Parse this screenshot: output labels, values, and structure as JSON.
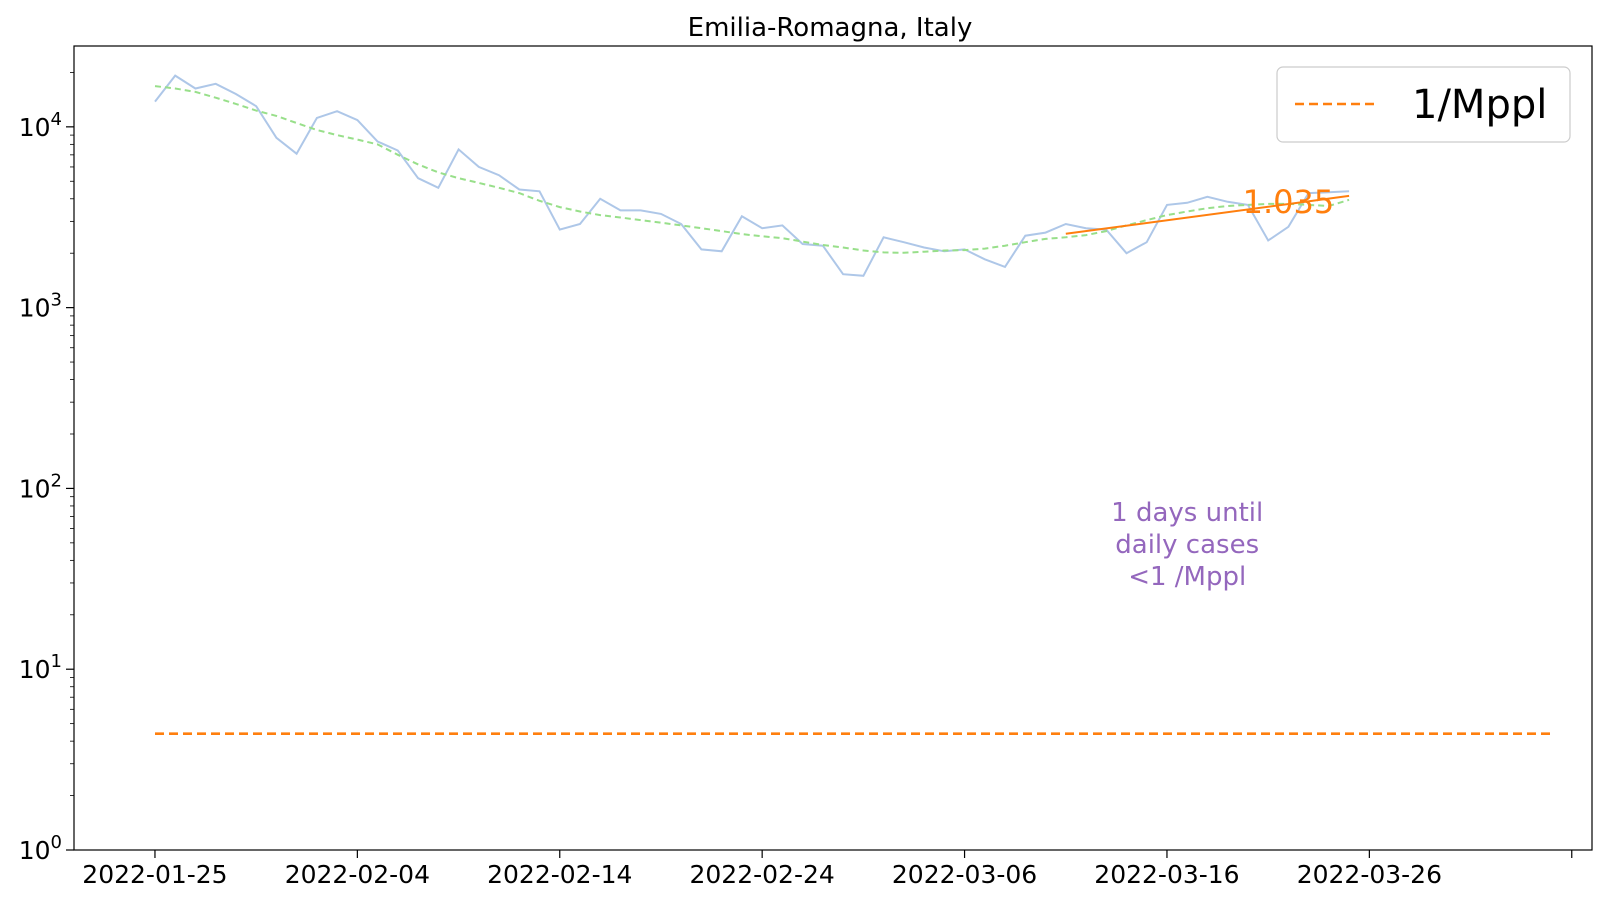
{
  "chart_data": {
    "type": "line",
    "title": "Emilia-Romagna, Italy",
    "xlabel": "",
    "ylabel": "",
    "y_scale": "log",
    "ylim": [
      1,
      28000
    ],
    "xlim": [
      "2022-01-21",
      "2022-04-06"
    ],
    "x_ticks": [
      "2022-01-25",
      "2022-02-04",
      "2022-02-14",
      "2022-02-24",
      "2022-03-06",
      "2022-03-16",
      "2022-03-26",
      "2022-04-05"
    ],
    "x_tick_labels": [
      "2022-01-25",
      "2022-02-04",
      "2022-02-14",
      "2022-02-24",
      "2022-03-06",
      "2022-03-16",
      "2022-03-26",
      ""
    ],
    "y_ticks": [
      1,
      10,
      100,
      1000,
      10000
    ],
    "y_tick_labels": [
      {
        "base": "10",
        "exp": "0"
      },
      {
        "base": "10",
        "exp": "1"
      },
      {
        "base": "10",
        "exp": "2"
      },
      {
        "base": "10",
        "exp": "3"
      },
      {
        "base": "10",
        "exp": "4"
      }
    ],
    "grid": false,
    "legend": {
      "placement": "top-right",
      "entries": [
        {
          "label": "1/Mppl",
          "color": "#ff7f0e",
          "style": "dashed"
        }
      ]
    },
    "series": [
      {
        "color": "#aec7e8",
        "style": "solid",
        "x_start": "2022-01-25",
        "values": [
          13800,
          19200,
          16300,
          17300,
          15200,
          13000,
          8700,
          7100,
          11200,
          12200,
          10900,
          8300,
          7400,
          5200,
          4600,
          7500,
          6000,
          5400,
          4500,
          4400,
          2700,
          2900,
          4000,
          3450,
          3450,
          3300,
          2900,
          2100,
          2050,
          3200,
          2750,
          2850,
          2250,
          2200,
          1530,
          1500,
          2450,
          2300,
          2150,
          2050,
          2100,
          1850,
          1680,
          2500,
          2600,
          2900,
          2750,
          2700,
          2000,
          2300,
          3700,
          3800,
          4100,
          3850,
          3700,
          2350,
          2800,
          4300,
          4350,
          4400
        ]
      },
      {
        "color": "#98df8a",
        "style": "dashed",
        "x_start": "2022-01-25",
        "values": [
          16800,
          16300,
          15600,
          14500,
          13400,
          12300,
          11500,
          10500,
          9600,
          9000,
          8500,
          8000,
          7000,
          6200,
          5600,
          5200,
          4900,
          4600,
          4300,
          3900,
          3600,
          3400,
          3250,
          3150,
          3050,
          2950,
          2850,
          2750,
          2650,
          2550,
          2480,
          2420,
          2320,
          2220,
          2150,
          2070,
          2020,
          2010,
          2040,
          2070,
          2080,
          2120,
          2200,
          2300,
          2400,
          2450,
          2520,
          2650,
          2850,
          3050,
          3250,
          3400,
          3550,
          3650,
          3700,
          3750,
          3750,
          3700,
          3650,
          3950
        ]
      },
      {
        "color": "#ff7f0e",
        "style": "solid",
        "x": [
          "2022-03-11",
          "2022-03-25"
        ],
        "values": [
          2560,
          4150
        ]
      },
      {
        "name": "1/Mppl",
        "color": "#ff7f0e",
        "style": "dashed",
        "x": [
          "2022-01-25",
          "2022-04-04"
        ],
        "values": [
          4.4,
          4.4
        ]
      }
    ],
    "annotations": [
      {
        "text": "1.035",
        "x": "2022-03-22",
        "y": 3850,
        "color": "#ff7f0e"
      },
      {
        "lines": [
          "1 days until",
          "daily cases",
          "<1 /Mppl"
        ],
        "x": "2022-03-17",
        "y": 45,
        "color": "#9467bd"
      }
    ]
  }
}
